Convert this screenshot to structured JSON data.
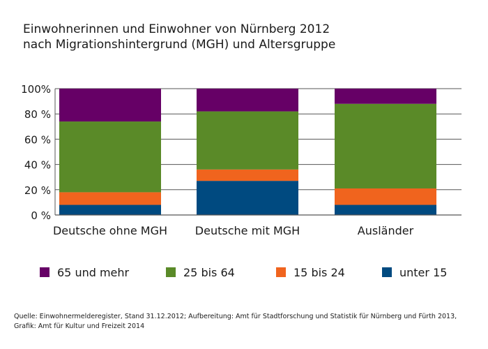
{
  "title": {
    "line1": "Einwohnerinnen und Einwohner von Nürnberg 2012",
    "line2": "nach Migrationshintergrund (MGH) und Altersgruppe"
  },
  "chart_data": {
    "type": "bar",
    "stacked": true,
    "categories": [
      "Deutsche ohne MGH",
      "Deutsche mit MGH",
      "Ausländer"
    ],
    "series": [
      {
        "name": "unter 15",
        "color": "#004a80",
        "values": [
          8,
          27,
          8
        ]
      },
      {
        "name": "15 bis 24",
        "color": "#f0641e",
        "values": [
          10,
          9,
          13
        ]
      },
      {
        "name": "25 bis 64",
        "color": "#5a8a28",
        "values": [
          56,
          46,
          67
        ]
      },
      {
        "name": "65 und mehr",
        "color": "#660066",
        "values": [
          26,
          18,
          12
        ]
      }
    ],
    "legend_order": [
      "65 und mehr",
      "25 bis 64",
      "15 bis 24",
      "unter 15"
    ],
    "yticks": [
      "0 %",
      "20 %",
      "40 %",
      "60 %",
      "80 %",
      "100%"
    ],
    "ylim": [
      0,
      100
    ],
    "grid": true,
    "legend_position": "bottom"
  },
  "source": {
    "line1": "Quelle: Einwohnermelderegister, Stand 31.12.2012; Aufbereitung: Amt für Stadtforschung und Statistik für Nürnberg und Fürth 2013,",
    "line2": "Grafik: Amt für Kultur und Freizeit 2014"
  }
}
